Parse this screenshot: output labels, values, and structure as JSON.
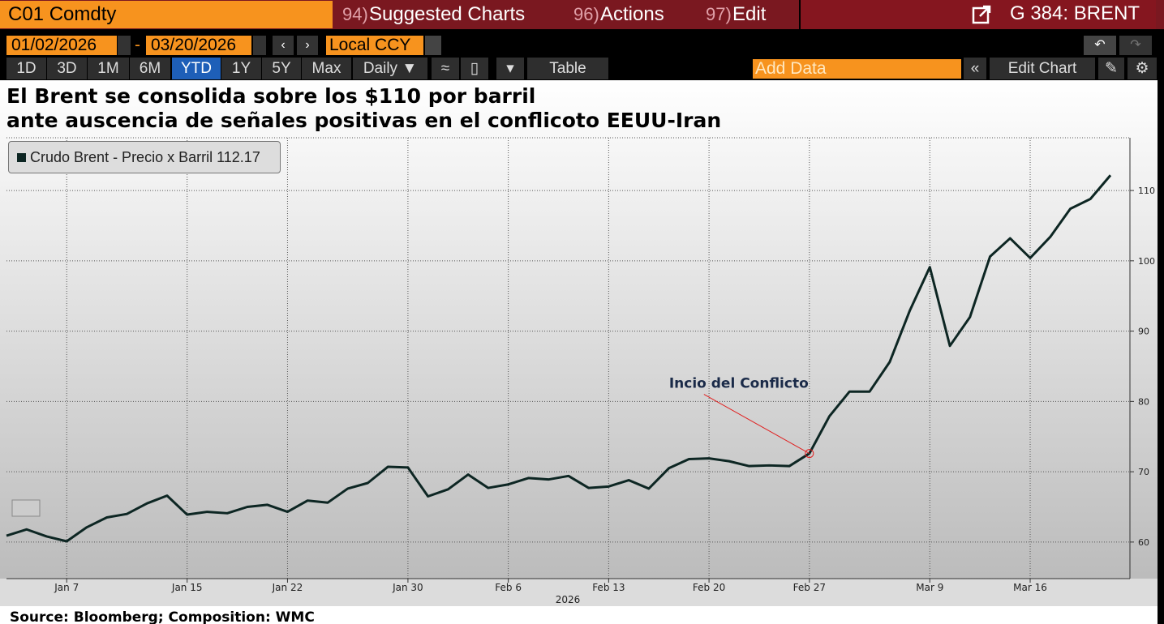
{
  "toolbar": {
    "security": "C01 Comdty",
    "menus": [
      {
        "number": "94)",
        "label": "Suggested Charts"
      },
      {
        "number": "96)",
        "label": "Actions"
      },
      {
        "number": "97)",
        "label": "Edit"
      }
    ],
    "function": "G 384: BRENT",
    "start_date": "01/02/2026",
    "date_separator": "-",
    "end_date": "03/20/2026",
    "currency": "Local CCY",
    "ranges": [
      "1D",
      "3D",
      "1M",
      "6M",
      "YTD",
      "1Y",
      "5Y",
      "Max"
    ],
    "active_range": "YTD",
    "frequency": "Daily ▼",
    "table": "Table",
    "add_data": "Add Data",
    "edit_chart": "Edit Chart"
  },
  "chart_data": {
    "type": "line",
    "title": [
      "El Brent se consolida sobre los $110 por barril",
      "ante auscencia de señales positivas en el conflicoto EEUU-Iran"
    ],
    "x_label": "2026",
    "x": [
      "2026-01-02",
      "2026-01-05",
      "2026-01-06",
      "2026-01-07",
      "2026-01-08",
      "2026-01-09",
      "2026-01-12",
      "2026-01-13",
      "2026-01-14",
      "2026-01-15",
      "2026-01-16",
      "2026-01-19",
      "2026-01-20",
      "2026-01-21",
      "2026-01-22",
      "2026-01-23",
      "2026-01-26",
      "2026-01-27",
      "2026-01-28",
      "2026-01-29",
      "2026-01-30",
      "2026-02-02",
      "2026-02-03",
      "2026-02-04",
      "2026-02-05",
      "2026-02-06",
      "2026-02-09",
      "2026-02-10",
      "2026-02-11",
      "2026-02-12",
      "2026-02-13",
      "2026-02-16",
      "2026-02-17",
      "2026-02-18",
      "2026-02-19",
      "2026-02-20",
      "2026-02-23",
      "2026-02-24",
      "2026-02-25",
      "2026-02-26",
      "2026-02-27",
      "2026-03-02",
      "2026-03-03",
      "2026-03-04",
      "2026-03-05",
      "2026-03-06",
      "2026-03-09",
      "2026-03-10",
      "2026-03-11",
      "2026-03-12",
      "2026-03-13",
      "2026-03-16",
      "2026-03-17",
      "2026-03-18",
      "2026-03-19",
      "2026-03-20"
    ],
    "series": [
      {
        "name": "Crudo Brent - Precio x Barril",
        "color": "#0d2623",
        "values": [
          60.9,
          61.8,
          60.8,
          60.1,
          62.1,
          63.5,
          64.0,
          65.5,
          66.6,
          63.9,
          64.3,
          64.1,
          65.0,
          65.3,
          64.3,
          65.9,
          65.6,
          67.6,
          68.4,
          70.7,
          70.6,
          66.5,
          67.5,
          69.6,
          67.7,
          68.2,
          69.1,
          68.9,
          69.4,
          67.7,
          67.9,
          68.8,
          67.6,
          70.5,
          71.8,
          71.9,
          71.5,
          70.8,
          70.9,
          70.8,
          72.6,
          77.9,
          81.4,
          81.4,
          85.6,
          92.9,
          99.1,
          87.9,
          92.0,
          100.6,
          103.2,
          100.4,
          103.4,
          107.4,
          108.8,
          112.17
        ]
      }
    ],
    "xticks": [
      {
        "value": "2026-01-07",
        "label": "Jan 7"
      },
      {
        "value": "2026-01-15",
        "label": "Jan 15"
      },
      {
        "value": "2026-01-22",
        "label": "Jan 22"
      },
      {
        "value": "2026-01-30",
        "label": "Jan 30"
      },
      {
        "value": "2026-02-06",
        "label": "Feb 6"
      },
      {
        "value": "2026-02-13",
        "label": "Feb 13"
      },
      {
        "value": "2026-02-20",
        "label": "Feb 20"
      },
      {
        "value": "2026-02-27",
        "label": "Feb 27"
      },
      {
        "value": "2026-03-09",
        "label": "Mar 9"
      },
      {
        "value": "2026-03-16",
        "label": "Mar 16"
      }
    ],
    "ylim": [
      54.8,
      117.5
    ],
    "yticks": [
      60,
      70,
      80,
      90,
      100,
      110
    ],
    "y_axis_side": "right",
    "grid": true,
    "legend": "top-left",
    "annotations": [
      {
        "text": "Incio del Conflicto",
        "x": "2026-02-27",
        "color": "#e02020"
      }
    ]
  },
  "source": "Source: Bloomberg; Composition: WMC"
}
